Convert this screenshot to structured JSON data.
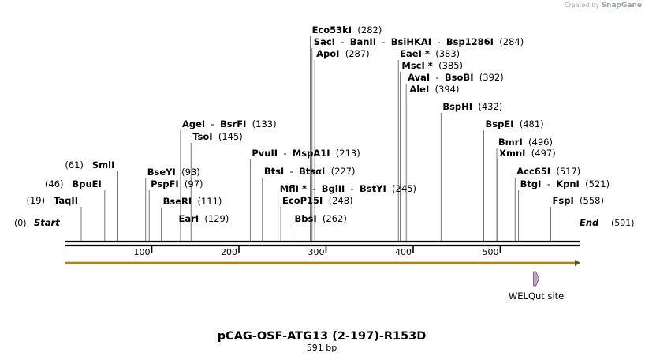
{
  "credit": {
    "prefix": "Created by",
    "brand": "SnapGene"
  },
  "map": {
    "title": "pCAG-OSF-ATG13 (2-197)-R153D",
    "length_label": "591 bp",
    "total_bp": 591,
    "start_label": "Start",
    "start_pos": "(0)",
    "end_label": "End",
    "end_pos": "(591)",
    "ruler_ticks": [
      "100",
      "200",
      "300",
      "400",
      "500"
    ],
    "colors": {
      "orf": "#f3a718",
      "feature": "#c8a2c8",
      "backbone": "#000000"
    }
  },
  "cut_sites": [
    {
      "names": [
        "TaqII"
      ],
      "pos": 19,
      "star": false
    },
    {
      "names": [
        "BpuEI"
      ],
      "pos": 46,
      "star": false
    },
    {
      "names": [
        "SmlI"
      ],
      "pos": 61,
      "star": false
    },
    {
      "names": [
        "BseYI"
      ],
      "pos": 93,
      "star": false
    },
    {
      "names": [
        "PspFI"
      ],
      "pos": 97,
      "star": false
    },
    {
      "names": [
        "BseRI"
      ],
      "pos": 111,
      "star": false
    },
    {
      "names": [
        "EarI"
      ],
      "pos": 129,
      "star": false
    },
    {
      "names": [
        "AgeI",
        "BsrFI"
      ],
      "pos": 133,
      "star": false
    },
    {
      "names": [
        "TsoI"
      ],
      "pos": 145,
      "star": false
    },
    {
      "names": [
        "PvuII",
        "MspA1I"
      ],
      "pos": 213,
      "star": false
    },
    {
      "names": [
        "BtsI",
        "BtsαI"
      ],
      "pos": 227,
      "star": false
    },
    {
      "names": [
        "MflI",
        "BglII",
        "BstYI"
      ],
      "pos": 245,
      "star": true
    },
    {
      "names": [
        "EcoP15I"
      ],
      "pos": 248,
      "star": false
    },
    {
      "names": [
        "BbsI"
      ],
      "pos": 262,
      "star": false
    },
    {
      "names": [
        "Eco53kI"
      ],
      "pos": 282,
      "star": false
    },
    {
      "names": [
        "SacI",
        "BanII",
        "BsiHKAI",
        "Bsp1286I"
      ],
      "pos": 284,
      "star": false
    },
    {
      "names": [
        "ApoI"
      ],
      "pos": 287,
      "star": false
    },
    {
      "names": [
        "EaeI"
      ],
      "pos": 383,
      "star": true
    },
    {
      "names": [
        "MscI"
      ],
      "pos": 385,
      "star": true
    },
    {
      "names": [
        "AvaI",
        "BsoBI"
      ],
      "pos": 392,
      "star": false
    },
    {
      "names": [
        "AleI"
      ],
      "pos": 394,
      "star": false
    },
    {
      "names": [
        "BspHI"
      ],
      "pos": 432,
      "star": false
    },
    {
      "names": [
        "BspEI"
      ],
      "pos": 481,
      "star": false
    },
    {
      "names": [
        "BmrI"
      ],
      "pos": 496,
      "star": false
    },
    {
      "names": [
        "XmnI"
      ],
      "pos": 497,
      "star": false
    },
    {
      "names": [
        "Acc65I"
      ],
      "pos": 517,
      "star": false
    },
    {
      "names": [
        "BtgI",
        "KpnI"
      ],
      "pos": 521,
      "star": false
    },
    {
      "names": [
        "FspI"
      ],
      "pos": 558,
      "star": false
    }
  ],
  "features": [
    {
      "name": "WELQut site",
      "start": 520,
      "end": 530,
      "type": "site"
    }
  ]
}
